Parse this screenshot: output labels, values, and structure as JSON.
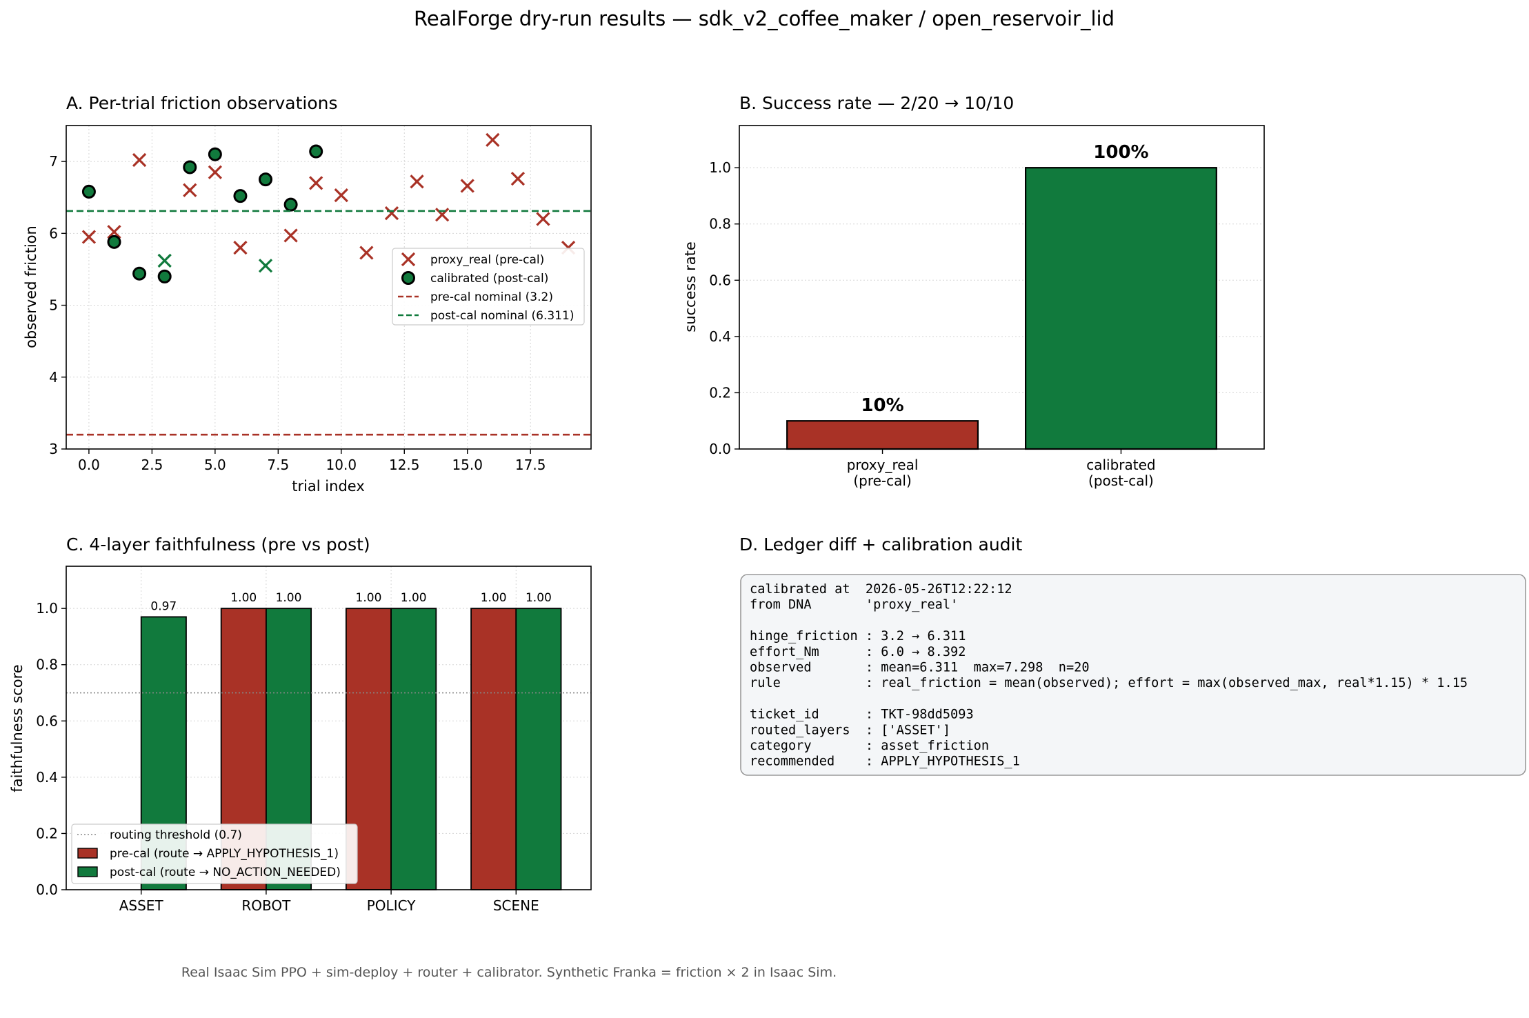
{
  "figure": {
    "title": "RealForge dry-run results — sdk_v2_coffee_maker / open_reservoir_lid",
    "footer": "Real Isaac Sim PPO + sim-deploy + router + calibrator. Synthetic Franka = friction × 2 in Isaac Sim."
  },
  "colors": {
    "red": "#a93226",
    "green": "#117a3d",
    "grid": "#d5d5d5",
    "audit_bg": "#f4f6f8",
    "audit_border": "#9a9a9a"
  },
  "chart_data": [
    {
      "id": "A",
      "type": "scatter",
      "title": "A. Per-trial friction observations",
      "xlabel": "trial index",
      "ylabel": "observed friction",
      "xlim": [
        -0.9,
        19.9
      ],
      "ylim": [
        3,
        7.5
      ],
      "xticks": [
        "0.0",
        "2.5",
        "5.0",
        "7.5",
        "10.0",
        "12.5",
        "15.0",
        "17.5"
      ],
      "yticks": [
        "3",
        "4",
        "5",
        "6",
        "7"
      ],
      "grid": true,
      "legend_position": "center-right",
      "series": [
        {
          "name": "proxy_real (pre-cal)",
          "marker": "x",
          "color": "red",
          "points": [
            [
              0,
              5.95
            ],
            [
              1,
              6.02
            ],
            [
              2,
              7.02
            ],
            [
              4,
              6.6
            ],
            [
              5,
              6.85
            ],
            [
              6,
              5.8
            ],
            [
              8,
              5.97
            ],
            [
              9,
              6.7
            ],
            [
              10,
              6.53
            ],
            [
              11,
              5.73
            ],
            [
              12,
              6.28
            ],
            [
              13,
              6.72
            ],
            [
              14,
              6.26
            ],
            [
              15,
              6.66
            ],
            [
              16,
              7.3
            ],
            [
              17,
              6.76
            ],
            [
              18,
              6.2
            ],
            [
              19,
              5.8
            ]
          ]
        },
        {
          "name": "",
          "marker": "x",
          "color": "green",
          "points": [
            [
              3,
              5.62
            ],
            [
              7,
              5.55
            ]
          ]
        },
        {
          "name": "calibrated (post-cal)",
          "marker": "o",
          "color": "green",
          "points": [
            [
              0,
              6.58
            ],
            [
              1,
              5.88
            ],
            [
              2,
              5.44
            ],
            [
              3,
              5.4
            ],
            [
              4,
              6.92
            ],
            [
              5,
              7.1
            ],
            [
              6,
              6.52
            ],
            [
              7,
              6.75
            ],
            [
              8,
              6.4
            ],
            [
              9,
              7.14
            ]
          ]
        },
        {
          "name": "pre-cal nominal (3.2)",
          "marker": "hline",
          "color": "red",
          "y": 3.2
        },
        {
          "name": "post-cal nominal (6.311)",
          "marker": "hline",
          "color": "green",
          "y": 6.311
        }
      ]
    },
    {
      "id": "B",
      "type": "bar",
      "title": "B. Success rate — 2/20 → 10/10",
      "ylabel": "success rate",
      "ylim": [
        0,
        1.15
      ],
      "yticks": [
        "0.0",
        "0.2",
        "0.4",
        "0.6",
        "0.8",
        "1.0"
      ],
      "categories": [
        [
          "proxy_real",
          "(pre-cal)"
        ],
        [
          "calibrated",
          "(post-cal)"
        ]
      ],
      "values": [
        0.1,
        1.0
      ],
      "value_labels": [
        "10%",
        "100%"
      ],
      "bar_colors": [
        "red",
        "green"
      ],
      "grid": true
    },
    {
      "id": "C",
      "type": "bar",
      "title": "C. 4-layer faithfulness (pre vs post)",
      "ylabel": "faithfulness score",
      "ylim": [
        0,
        1.15
      ],
      "yticks": [
        "0.0",
        "0.2",
        "0.4",
        "0.6",
        "0.8",
        "1.0"
      ],
      "categories": [
        "ASSET",
        "ROBOT",
        "POLICY",
        "SCENE"
      ],
      "threshold": {
        "name": "routing threshold (0.7)",
        "y": 0.7
      },
      "series": [
        {
          "name": "pre-cal (route → APPLY_HYPOTHESIS_1)",
          "color": "red",
          "values": [
            0,
            1.0,
            1.0,
            1.0
          ],
          "labels": [
            "",
            "1.00",
            "1.00",
            "1.00"
          ]
        },
        {
          "name": "post-cal (route → NO_ACTION_NEEDED)",
          "color": "green",
          "values": [
            0.97,
            1.0,
            1.0,
            1.0
          ],
          "labels": [
            "0.97",
            "1.00",
            "1.00",
            "1.00"
          ]
        }
      ],
      "grid": true,
      "legend_position": "lower-left"
    }
  ],
  "audit": {
    "title": "D. Ledger diff + calibration audit",
    "lines": [
      "calibrated at  2026-05-26T12:22:12",
      "from DNA       'proxy_real'",
      "",
      "hinge_friction : 3.2 → 6.311",
      "effort_Nm      : 6.0 → 8.392",
      "observed       : mean=6.311  max=7.298  n=20",
      "rule           : real_friction = mean(observed); effort = max(observed_max, real*1.15) * 1.15",
      "",
      "ticket_id      : TKT-98dd5093",
      "routed_layers  : ['ASSET']",
      "category       : asset_friction",
      "recommended    : APPLY_HYPOTHESIS_1"
    ]
  }
}
